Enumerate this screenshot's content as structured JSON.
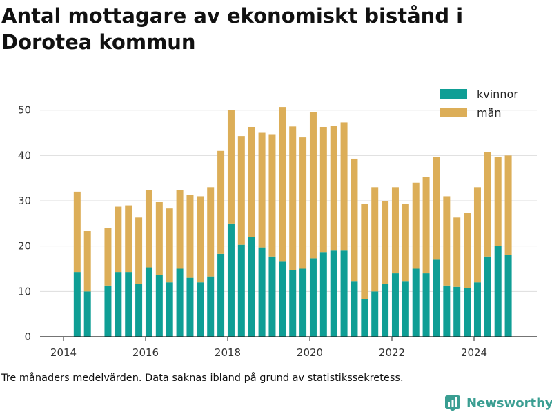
{
  "title": "Antal mottagare av ekonomiskt bistånd i Dorotea kommun",
  "caption": "Tre månaders medelvärden. Data saknas ibland på grund av statistikssekretess.",
  "brand": {
    "name": "Newsworthy",
    "icon": "newsworthy-logo-icon",
    "color": "#3a9e92"
  },
  "chart_data": {
    "type": "bar",
    "stacked": true,
    "ylim": [
      0,
      53
    ],
    "yticks": [
      0,
      10,
      20,
      30,
      40,
      50
    ],
    "xticks": [
      2014,
      2016,
      2018,
      2020,
      2022,
      2024
    ],
    "grid": "horizontal",
    "legend_position": "top-right",
    "colors": {
      "kvinnor": "#0f9e95",
      "män": "#dcae58"
    },
    "x": [
      "2014-05",
      "2014-08",
      "2014-11",
      "2015-02",
      "2015-05",
      "2015-08",
      "2015-11",
      "2016-02",
      "2016-05",
      "2016-08",
      "2016-11",
      "2017-02",
      "2017-05",
      "2017-08",
      "2017-11",
      "2018-02",
      "2018-05",
      "2018-08",
      "2018-11",
      "2019-02",
      "2019-05",
      "2019-08",
      "2019-11",
      "2020-02",
      "2020-05",
      "2020-08",
      "2020-11",
      "2021-02",
      "2021-05",
      "2021-08",
      "2021-11",
      "2022-02",
      "2022-05",
      "2022-08",
      "2022-11",
      "2023-02",
      "2023-05",
      "2023-08",
      "2023-11",
      "2024-02",
      "2024-05",
      "2024-08",
      "2024-11"
    ],
    "series": [
      {
        "name": "kvinnor",
        "values": [
          14.3,
          10.0,
          null,
          11.3,
          14.3,
          14.3,
          11.7,
          15.3,
          13.7,
          12.0,
          15.0,
          13.0,
          12.0,
          13.3,
          18.3,
          25.0,
          20.3,
          22.0,
          19.7,
          17.7,
          16.7,
          14.7,
          15.0,
          17.3,
          18.7,
          19.0,
          19.0,
          12.3,
          8.3,
          10.0,
          11.7,
          14.0,
          12.3,
          15.0,
          14.0,
          17.0,
          11.3,
          11.0,
          10.7,
          12.0,
          17.7,
          20.0,
          18.0
        ]
      },
      {
        "name": "män",
        "values": [
          17.7,
          13.3,
          null,
          12.7,
          14.4,
          14.7,
          14.6,
          17.0,
          16.0,
          16.3,
          17.3,
          18.3,
          19.0,
          19.7,
          22.7,
          25.0,
          24.0,
          24.3,
          25.3,
          27.0,
          34.0,
          31.7,
          29.0,
          32.3,
          27.6,
          27.6,
          28.3,
          27.0,
          21.0,
          23.0,
          18.3,
          19.0,
          17.0,
          19.0,
          21.3,
          22.6,
          19.7,
          15.3,
          16.6,
          21.0,
          23.0,
          19.6,
          22.0
        ]
      }
    ]
  }
}
